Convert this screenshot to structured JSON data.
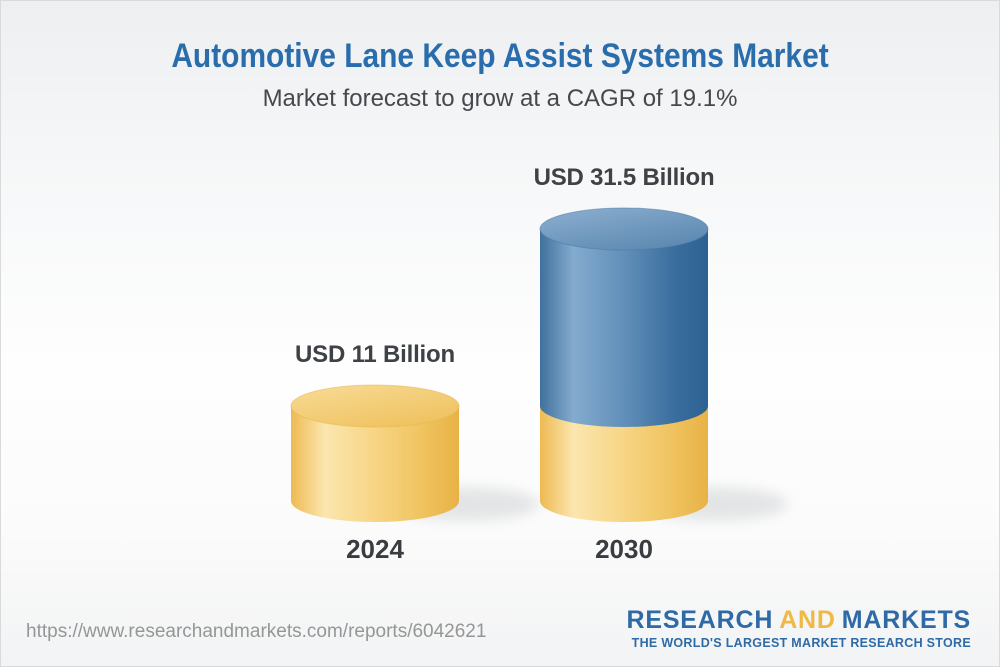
{
  "header": {
    "title": "Automotive Lane Keep Assist Systems Market",
    "subtitle": "Market forecast to grow at a CAGR of 19.1%"
  },
  "chart_data": {
    "type": "bar",
    "subtype": "3d-cylinder-stacked",
    "categories": [
      "2024",
      "2030"
    ],
    "values": [
      11,
      31.5
    ],
    "value_labels": [
      "USD 11 Billion",
      "USD 31.5 Billion"
    ],
    "unit": "USD Billion",
    "cagr_percent": 19.1,
    "xlabel": "",
    "ylabel": "",
    "grid": false,
    "legend": false,
    "colors": {
      "base_segment_yellow": "#f3c869",
      "growth_segment_blue": "#4c7fac",
      "value_label_text": "#3e4145",
      "category_label_text": "#393d42"
    },
    "layout_note": "2030 bar is stacked: yellow base segment equals the 2024 value, blue segment shows growth to 31.5"
  },
  "footer": {
    "url": "https://www.researchandmarkets.com/reports/6042621",
    "logo": {
      "word1": "RESEARCH",
      "word2": "AND",
      "word3": "MARKETS",
      "tagline": "THE WORLD'S LARGEST MARKET RESEARCH STORE",
      "blue": "#2e6ba6",
      "yellow": "#f0b944"
    }
  },
  "theme": {
    "title_color": "#2a6dad",
    "subtitle_color": "#45494d",
    "url_color": "#969696",
    "background_top": "#edeff1",
    "background_bottom": "#f2f3f4",
    "border_color": "#d9dadb"
  }
}
